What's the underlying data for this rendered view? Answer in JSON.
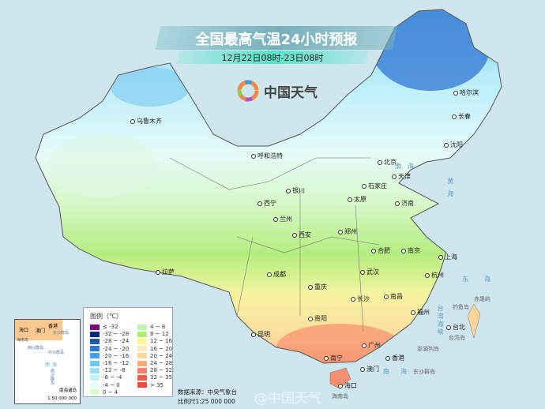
{
  "header": {
    "title": "全国最高气温24小时预报",
    "subtitle": "12月22日08时-23日08时"
  },
  "logo": {
    "text": "中国天气",
    "icon": "china-weather-swirl-logo"
  },
  "cities": [
    "哈尔滨",
    "长春",
    "沈阳",
    "乌鲁木齐",
    "呼和浩特",
    "北京",
    "天津",
    "石家庄",
    "银川",
    "太原",
    "济南",
    "西宁",
    "兰州",
    "西安",
    "郑州",
    "合肥",
    "南京",
    "上海",
    "拉萨",
    "成都",
    "武汉",
    "杭州",
    "重庆",
    "长沙",
    "南昌",
    "贵阳",
    "福州",
    "台北",
    "昆明",
    "南宁",
    "广州",
    "香港",
    "澳门",
    "海口"
  ],
  "seas": [
    "渤海",
    "黄海",
    "东海",
    "南海",
    "台湾海峡"
  ],
  "islands": [
    "钓鱼岛",
    "赤尾屿",
    "台湾岛",
    "澎湖列岛",
    "东沙群岛",
    "海南岛"
  ],
  "legend": {
    "title": "图例（℃）",
    "items": [
      {
        "label": "≤ -32",
        "color": "#7a0a7e"
      },
      {
        "label": "-32 ~ -28",
        "color": "#0a2a7a"
      },
      {
        "label": "-28 ~ -24",
        "color": "#245a9e"
      },
      {
        "label": "-24 ~ -20",
        "color": "#2a78d0"
      },
      {
        "label": "-20 ~ -16",
        "color": "#44a2ec"
      },
      {
        "label": "-16 ~ -12",
        "color": "#6ccaf4"
      },
      {
        "label": "-12 ~ -8",
        "color": "#9cdff4"
      },
      {
        "label": "-8 ~ -4",
        "color": "#c2f4fa"
      },
      {
        "label": "-4 ~ 0",
        "color": "#eefcfc"
      },
      {
        "label": "0 ~ 4",
        "color": "#d8fbcc"
      },
      {
        "label": "4 ~ 8",
        "color": "#bff5b4"
      },
      {
        "label": "8 ~ 12",
        "color": "#b0f070"
      },
      {
        "label": "12 ~ 16",
        "color": "#fdf890"
      },
      {
        "label": "16 ~ 20",
        "color": "#fde9c0"
      },
      {
        "label": "20 ~ 24",
        "color": "#fdd8a0"
      },
      {
        "label": "24 ~ 28",
        "color": "#fdaa70"
      },
      {
        "label": "28 ~ 32",
        "color": "#f88070"
      },
      {
        "label": "32 ~ 35",
        "color": "#f05a40"
      },
      {
        "label": "> 35",
        "color": "#ef4a3a"
      }
    ]
  },
  "inset": {
    "title": "南海诸岛",
    "scale": "1:50 000 000",
    "labels": [
      "海口",
      "香港",
      "澳门",
      "东沙群岛",
      "西沙群岛",
      "中沙群岛",
      "南海",
      "南沙群岛",
      "海南岛"
    ]
  },
  "footer": {
    "source": "数据来源：中央气象台",
    "scale": "比例尺1:25 000 000",
    "watermark": "@中国天气"
  }
}
